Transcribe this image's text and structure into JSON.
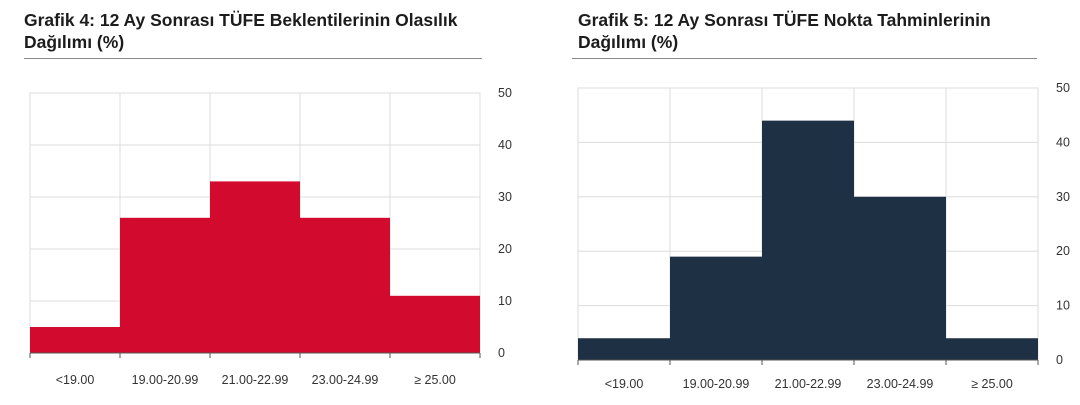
{
  "colors": {
    "left_bars": "#d10a2e",
    "right_bars": "#1e3044",
    "grid": "#dcdcdc",
    "axis": "#555555"
  },
  "chart_data": [
    {
      "type": "bar",
      "title": "Grafik 4: 12 Ay Sonrası TÜFE Beklentilerinin Olasılık Dağılımı (%)",
      "categories": [
        "<19.00",
        "19.00-20.99",
        "21.00-22.99",
        "23.00-24.99",
        "≥ 25.00"
      ],
      "values": [
        5,
        26,
        33,
        26,
        11
      ],
      "yticks": [
        0,
        10,
        20,
        30,
        40,
        50
      ],
      "ylim": [
        0,
        50
      ],
      "y_axis_side": "right",
      "grid": true
    },
    {
      "type": "bar",
      "title": "Grafik 5: 12 Ay Sonrası TÜFE Nokta Tahminlerinin Dağılımı (%)",
      "categories": [
        "<19.00",
        "19.00-20.99",
        "21.00-22.99",
        "23.00-24.99",
        "≥ 25.00"
      ],
      "values": [
        4,
        19,
        44,
        30,
        4
      ],
      "yticks": [
        0,
        10,
        20,
        30,
        40,
        50
      ],
      "ylim": [
        0,
        50
      ],
      "y_axis_side": "right",
      "grid": true
    }
  ]
}
